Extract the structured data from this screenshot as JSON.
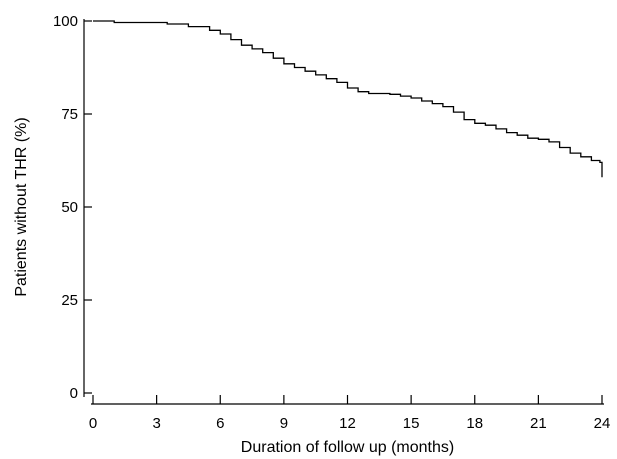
{
  "chart_data": {
    "type": "line",
    "title": "",
    "xlabel": "Duration of follow up (months)",
    "ylabel": "Patients without THR (%)",
    "xlim": [
      0,
      24
    ],
    "ylim": [
      0,
      100
    ],
    "x_ticks": [
      0,
      3,
      6,
      9,
      12,
      15,
      18,
      21,
      24
    ],
    "y_ticks": [
      0,
      25,
      50,
      75,
      100
    ],
    "x_tick_labels": [
      "0",
      "3",
      "6",
      "9",
      "12",
      "15",
      "18",
      "21",
      "24"
    ],
    "y_tick_labels": [
      "0",
      "25",
      "50",
      "75",
      "100"
    ],
    "grid": false,
    "legend": "none",
    "series": [
      {
        "style": "step",
        "x": [
          0,
          1.0,
          3.5,
          4.5,
          5.5,
          6.0,
          6.5,
          7.0,
          7.5,
          8.0,
          8.5,
          9.0,
          9.5,
          10.0,
          10.5,
          11.0,
          11.5,
          12.0,
          12.5,
          13.0,
          14.0,
          14.5,
          15.0,
          15.5,
          16.0,
          16.5,
          17.0,
          17.5,
          18.0,
          18.5,
          19.0,
          19.5,
          20.0,
          20.5,
          21.0,
          21.5,
          22.0,
          22.5,
          23.0,
          23.5,
          23.9,
          24.0,
          24.0
        ],
        "y": [
          100,
          99.6,
          99.2,
          98.5,
          97.5,
          96.5,
          95.0,
          93.5,
          92.5,
          91.5,
          90.0,
          88.5,
          87.5,
          86.5,
          85.5,
          84.5,
          83.5,
          82.0,
          81.0,
          80.5,
          80.3,
          79.8,
          79.3,
          78.5,
          77.8,
          77.0,
          75.5,
          73.5,
          72.5,
          72.0,
          71.0,
          70.0,
          69.3,
          68.5,
          68.2,
          67.5,
          66.0,
          64.5,
          63.5,
          62.5,
          62.0,
          62.0,
          58.0
        ]
      }
    ]
  }
}
